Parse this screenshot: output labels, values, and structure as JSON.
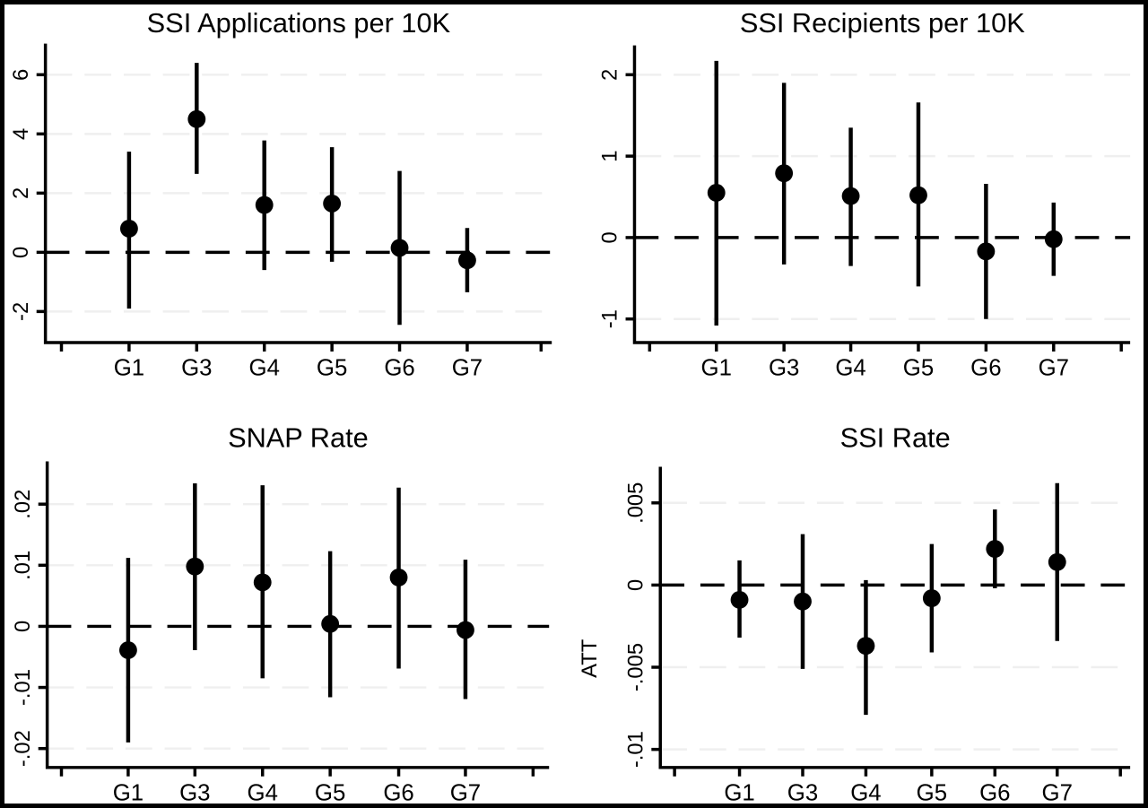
{
  "figure": {
    "background_color": "#ffffff",
    "frame_color": "#000000",
    "axis_color": "#000000",
    "marker_color": "#000000",
    "faint_grid_color": "#efefef",
    "layout": "2x2-panel-coefficient-plots"
  },
  "chart_data": [
    {
      "type": "scatter",
      "subtype": "coefficient-errorbar",
      "title": "SSI Applications per 10K",
      "categories": [
        "G1",
        "G3",
        "G4",
        "G5",
        "G6",
        "G7"
      ],
      "series": [
        {
          "name": "estimate",
          "values": [
            0.8,
            4.5,
            1.6,
            1.65,
            0.15,
            -0.27
          ]
        },
        {
          "name": "ci_low",
          "values": [
            -1.9,
            2.65,
            -0.6,
            -0.32,
            -2.45,
            -1.35
          ]
        },
        {
          "name": "ci_high",
          "values": [
            3.4,
            6.4,
            3.78,
            3.55,
            2.75,
            0.82
          ]
        }
      ],
      "yticks": [
        {
          "value": -2,
          "label": "-2"
        },
        {
          "value": 0,
          "label": "0"
        },
        {
          "value": 2,
          "label": "2"
        },
        {
          "value": 4,
          "label": "4"
        },
        {
          "value": 6,
          "label": "6"
        }
      ],
      "ylim": [
        -3.05,
        7.05
      ],
      "zero_line": true,
      "grid": "faint-horizontal",
      "legend": "none"
    },
    {
      "type": "scatter",
      "subtype": "coefficient-errorbar",
      "title": "SSI Recipients per 10K",
      "categories": [
        "G1",
        "G3",
        "G4",
        "G5",
        "G6",
        "G7"
      ],
      "series": [
        {
          "name": "estimate",
          "values": [
            0.55,
            0.79,
            0.51,
            0.52,
            -0.17,
            -0.02
          ]
        },
        {
          "name": "ci_low",
          "values": [
            -1.08,
            -0.33,
            -0.35,
            -0.6,
            -1.0,
            -0.47
          ]
        },
        {
          "name": "ci_high",
          "values": [
            2.17,
            1.9,
            1.35,
            1.66,
            0.66,
            0.43
          ]
        }
      ],
      "yticks": [
        {
          "value": -1,
          "label": "-1"
        },
        {
          "value": 0,
          "label": "0"
        },
        {
          "value": 1,
          "label": "1"
        },
        {
          "value": 2,
          "label": "2"
        }
      ],
      "ylim": [
        -1.29,
        2.36
      ],
      "zero_line": true,
      "grid": "faint-horizontal",
      "legend": "none"
    },
    {
      "type": "scatter",
      "subtype": "coefficient-errorbar",
      "title": "SNAP Rate",
      "categories": [
        "G1",
        "G3",
        "G4",
        "G5",
        "G6",
        "G7"
      ],
      "series": [
        {
          "name": "estimate",
          "values": [
            -0.0039,
            0.0098,
            0.0072,
            0.0004,
            0.008,
            -0.0006
          ]
        },
        {
          "name": "ci_low",
          "values": [
            -0.019,
            -0.0039,
            -0.0085,
            -0.0116,
            -0.0069,
            -0.0119
          ]
        },
        {
          "name": "ci_high",
          "values": [
            0.0112,
            0.0234,
            0.0231,
            0.0123,
            0.0227,
            0.0109
          ]
        }
      ],
      "yticks": [
        {
          "value": -0.02,
          "label": "-.02"
        },
        {
          "value": -0.01,
          "label": "-.01"
        },
        {
          "value": 0,
          "label": "0"
        },
        {
          "value": 0.01,
          "label": ".01"
        },
        {
          "value": 0.02,
          "label": ".02"
        }
      ],
      "ylim": [
        -0.0231,
        0.027
      ],
      "zero_line": true,
      "grid": "faint-horizontal",
      "legend": "none"
    },
    {
      "type": "scatter",
      "subtype": "coefficient-errorbar",
      "title": "SSI Rate",
      "ylabel": "ATT",
      "categories": [
        "G1",
        "G3",
        "G4",
        "G5",
        "G6",
        "G7"
      ],
      "series": [
        {
          "name": "estimate",
          "values": [
            -0.0009,
            -0.001,
            -0.0037,
            -0.0008,
            0.0022,
            0.0014
          ]
        },
        {
          "name": "ci_low",
          "values": [
            -0.0032,
            -0.0051,
            -0.0079,
            -0.0041,
            -0.0002,
            -0.0034
          ]
        },
        {
          "name": "ci_high",
          "values": [
            0.0015,
            0.0031,
            0.0003,
            0.0025,
            0.0046,
            0.0062
          ]
        }
      ],
      "yticks": [
        {
          "value": -0.01,
          "label": "-.01"
        },
        {
          "value": -0.005,
          "label": "-.005"
        },
        {
          "value": 0,
          "label": "0"
        },
        {
          "value": 0.005,
          "label": ".005"
        }
      ],
      "ylim": [
        -0.0111,
        0.0072
      ],
      "zero_line": true,
      "grid": "faint-horizontal",
      "legend": "none"
    }
  ]
}
